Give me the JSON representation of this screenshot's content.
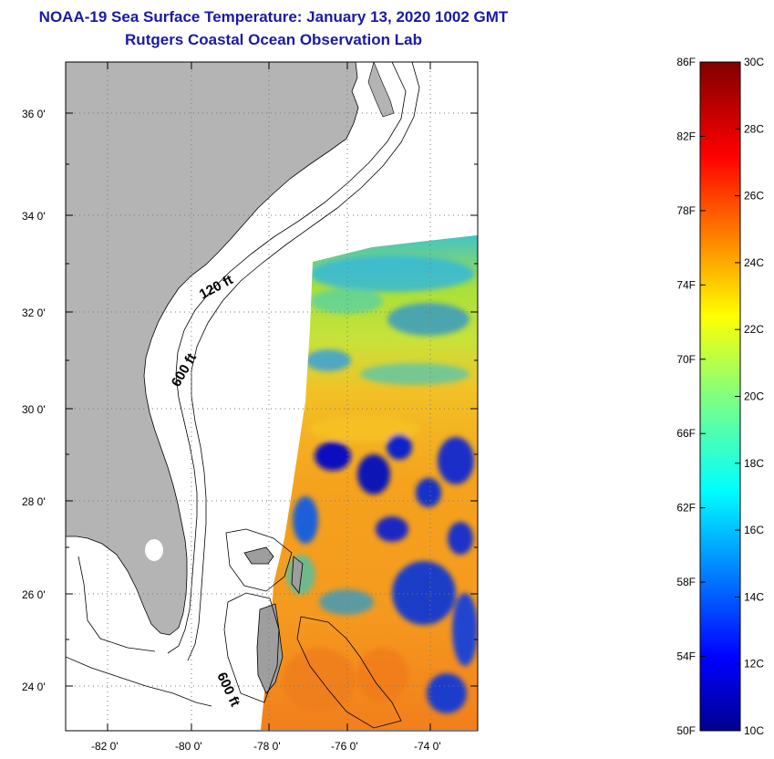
{
  "header": {
    "title": "NOAA-19 Sea Surface Temperature:  January 13, 2020 1002 GMT",
    "subtitle": "Rutgers Coastal Ocean Observation Lab"
  },
  "map": {
    "lat_ticks": [
      "36 0'",
      "34 0'",
      "32 0'",
      "30 0'",
      "28 0'",
      "26 0'",
      "24 0'"
    ],
    "lon_ticks": [
      "-82 0'",
      "-80 0'",
      "-78 0'",
      "-76 0'",
      "-74 0'"
    ],
    "contour_labels": [
      "120 ft",
      "600 ft",
      "600 ft"
    ],
    "colors": {
      "land": "#b4b4b4",
      "ocean_no_data": "#ffffff",
      "grid": "#7a7a7a"
    }
  },
  "colorbar": {
    "fahrenheit_labels": [
      "86F",
      "82F",
      "78F",
      "74F",
      "70F",
      "66F",
      "62F",
      "58F",
      "54F",
      "50F"
    ],
    "celsius_labels": [
      "30C",
      "28C",
      "26C",
      "24C",
      "22C",
      "20C",
      "18C",
      "16C",
      "14C",
      "12C",
      "10C"
    ],
    "range_c": [
      10,
      30
    ],
    "colormap": "jet"
  }
}
